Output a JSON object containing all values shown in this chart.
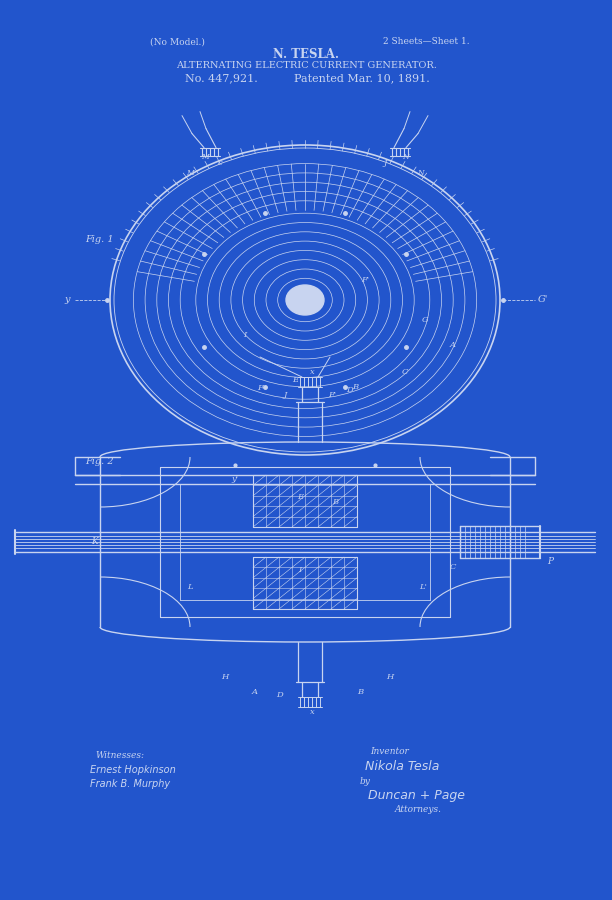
{
  "bg_color": "#2255cc",
  "line_color": "#c8d4f0",
  "text_color": "#c8d4f0",
  "title1": "(No Model.)",
  "title2": "2 Sheets—Sheet 1.",
  "title3": "N. TESLA.",
  "title4": "ALTERNATING ELECTRIC CURRENT GENERATOR.",
  "title5": "No. 447,921.",
  "title6": "Patented Mar. 10, 1891.",
  "fig1_label": "Fig. 1",
  "fig2_label": "Fig. 2",
  "witness_label": "Witnesses:",
  "witness1": "Ernest Hopkinson",
  "witness2": "Frank B. Murphy",
  "inventor_label": "Inventor",
  "inventor_name": "Nikola Tesla",
  "attorney_by": "by",
  "attorney_name": "Duncan + Page",
  "attorney_title": "Attorneys."
}
